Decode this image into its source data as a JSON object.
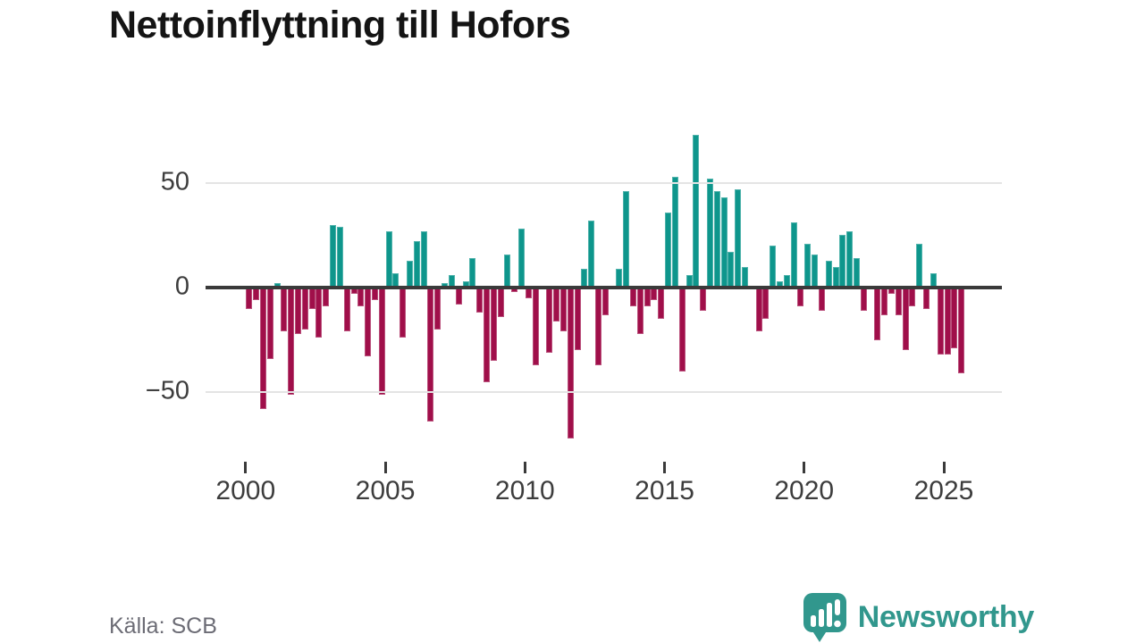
{
  "title": "Nettoinflyttning till Hofors",
  "source": "Källa: SCB",
  "logo": {
    "text": "Newsworthy"
  },
  "colors": {
    "positive": "#0e968c",
    "negative": "#a00f4a",
    "zero_line": "#3a3a3a",
    "grid": "#e4e4e4",
    "axis_label": "#3d3d3d",
    "source_text": "#6c6c75",
    "logo_teal": "#31978d",
    "title_text": "#141414",
    "background": "#ffffff"
  },
  "chart_data": {
    "type": "bar",
    "title": "Nettoinflyttning till Hofors",
    "xlabel": "",
    "ylabel": "",
    "grid": "horizontal",
    "legend": "none",
    "frequency": "quarterly",
    "start_period": "2000 Q1",
    "end_period": "2025 Q3",
    "ylim": [
      -75,
      78
    ],
    "y_ticks": [
      {
        "v": 50,
        "label": "50"
      },
      {
        "v": 0,
        "label": "0"
      },
      {
        "v": -50,
        "label": "−50"
      }
    ],
    "x_ticks": [
      {
        "year": 2000,
        "label": "2000"
      },
      {
        "year": 2005,
        "label": "2005"
      },
      {
        "year": 2010,
        "label": "2010"
      },
      {
        "year": 2015,
        "label": "2015"
      },
      {
        "year": 2020,
        "label": "2020"
      },
      {
        "year": 2025,
        "label": "2025"
      }
    ],
    "categories": [
      "2000 Q1",
      "2000 Q2",
      "2000 Q3",
      "2000 Q4",
      "2001 Q1",
      "2001 Q2",
      "2001 Q3",
      "2001 Q4",
      "2002 Q1",
      "2002 Q2",
      "2002 Q3",
      "2002 Q4",
      "2003 Q1",
      "2003 Q2",
      "2003 Q3",
      "2003 Q4",
      "2004 Q1",
      "2004 Q2",
      "2004 Q3",
      "2004 Q4",
      "2005 Q1",
      "2005 Q2",
      "2005 Q3",
      "2005 Q4",
      "2006 Q1",
      "2006 Q2",
      "2006 Q3",
      "2006 Q4",
      "2007 Q1",
      "2007 Q2",
      "2007 Q3",
      "2007 Q4",
      "2008 Q1",
      "2008 Q2",
      "2008 Q3",
      "2008 Q4",
      "2009 Q1",
      "2009 Q2",
      "2009 Q3",
      "2009 Q4",
      "2010 Q1",
      "2010 Q2",
      "2010 Q3",
      "2010 Q4",
      "2011 Q1",
      "2011 Q2",
      "2011 Q3",
      "2011 Q4",
      "2012 Q1",
      "2012 Q2",
      "2012 Q3",
      "2012 Q4",
      "2013 Q1",
      "2013 Q2",
      "2013 Q3",
      "2013 Q4",
      "2014 Q1",
      "2014 Q2",
      "2014 Q3",
      "2014 Q4",
      "2015 Q1",
      "2015 Q2",
      "2015 Q3",
      "2015 Q4",
      "2016 Q1",
      "2016 Q2",
      "2016 Q3",
      "2016 Q4",
      "2017 Q1",
      "2017 Q2",
      "2017 Q3",
      "2017 Q4",
      "2018 Q1",
      "2018 Q2",
      "2018 Q3",
      "2018 Q4",
      "2019 Q1",
      "2019 Q2",
      "2019 Q3",
      "2019 Q4",
      "2020 Q1",
      "2020 Q2",
      "2020 Q3",
      "2020 Q4",
      "2021 Q1",
      "2021 Q2",
      "2021 Q3",
      "2021 Q4",
      "2022 Q1",
      "2022 Q2",
      "2022 Q3",
      "2022 Q4",
      "2023 Q1",
      "2023 Q2",
      "2023 Q3",
      "2023 Q4",
      "2024 Q1",
      "2024 Q2",
      "2024 Q3",
      "2024 Q4",
      "2025 Q1",
      "2025 Q2",
      "2025 Q3"
    ],
    "values": [
      -10,
      -6,
      -58,
      -34,
      2,
      -21,
      -51,
      -22,
      -20,
      -10,
      -24,
      -9,
      30,
      29,
      -21,
      -3,
      -9,
      -33,
      -6,
      -51,
      27,
      7,
      -24,
      13,
      22,
      27,
      -64,
      -20,
      2,
      6,
      -8,
      3,
      14,
      -12,
      -45,
      -35,
      -14,
      16,
      -2,
      28,
      -5,
      -37,
      1,
      -31,
      -16,
      -21,
      -72,
      -30,
      9,
      32,
      -37,
      -13,
      -1,
      9,
      46,
      -9,
      -22,
      -9,
      -6,
      -15,
      36,
      53,
      -40,
      6,
      73,
      -11,
      52,
      46,
      43,
      17,
      47,
      10,
      0,
      -21,
      -15,
      20,
      3,
      6,
      31,
      -9,
      21,
      16,
      -11,
      13,
      10,
      25,
      27,
      14,
      -11,
      0,
      -25,
      -13,
      -3,
      -13,
      -30,
      -9,
      21,
      -10,
      7,
      -32,
      -32,
      -29,
      -41
    ],
    "positive_color": "#0e968c",
    "negative_color": "#a00f4a"
  }
}
